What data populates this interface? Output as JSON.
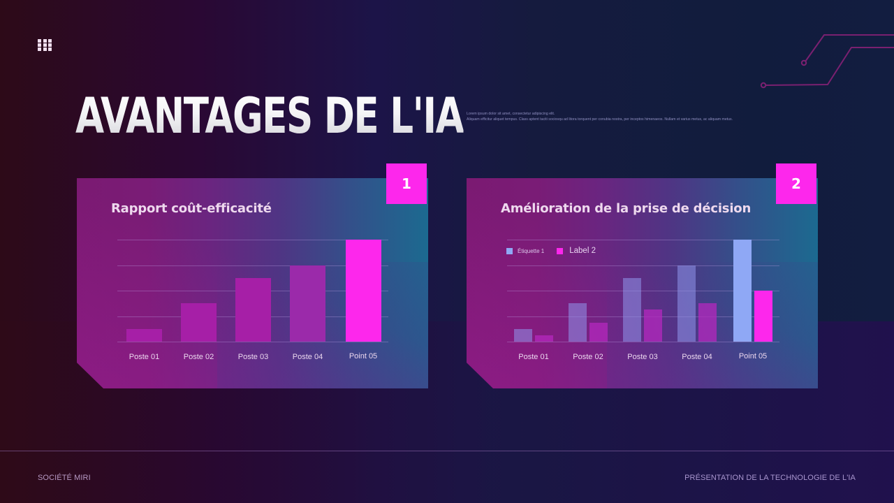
{
  "slide": {
    "title": "AVANTAGES DE L'IA",
    "intro_line_1": "Lorem ipsum dolor sit amet, consectetur adipiscing elit.",
    "intro_line_2": "Aliquam efficitur aliquet tempus. Class aptent taciti sociosqu ad litora torquent per conubia nostra, per inceptos himenaeos. Nullam et varius metus, ac aliquam metus.",
    "menu_icon": "grid-icon"
  },
  "cards": [
    {
      "badge": "1",
      "title": "Rapport coût-efficacité"
    },
    {
      "badge": "2",
      "title": "Amélioration de la prise de décision",
      "legend": [
        {
          "label": "Étiquette 1",
          "color": "#8fa8f5"
        },
        {
          "label": "Label 2",
          "color": "#fd27ec"
        }
      ]
    }
  ],
  "footer": {
    "left": "SOCIÉTÉ MIRI",
    "right": "PRÉSENTATION DE LA TECHNOLOGIE DE L'IA"
  },
  "colors": {
    "accent": "#fd27ec",
    "series_1": "#8fa8f5",
    "bar_muted": "#a724a8"
  },
  "chart_data": [
    {
      "type": "bar",
      "title": "Rapport coût-efficacité",
      "categories": [
        "Poste 01",
        "Poste 02",
        "Poste 03",
        "Poste 04",
        "Point 05"
      ],
      "values": [
        0.5,
        1.5,
        2.5,
        3.0,
        4.0
      ],
      "highlight_index": 4,
      "xlabel": "",
      "ylabel": "",
      "ylim": [
        0,
        4
      ],
      "grid": true,
      "gridline_count": 5,
      "legend": null
    },
    {
      "type": "bar",
      "title": "Amélioration de la prise de décision",
      "categories": [
        "Poste 01",
        "Poste 02",
        "Poste 03",
        "Poste 04",
        "Point 05"
      ],
      "series": [
        {
          "name": "Étiquette 1",
          "values": [
            0.5,
            1.5,
            2.5,
            3.0,
            4.0
          ]
        },
        {
          "name": "Label 2",
          "values": [
            0.25,
            0.75,
            1.25,
            1.5,
            2.0
          ]
        }
      ],
      "highlight_index": 4,
      "xlabel": "",
      "ylabel": "",
      "ylim": [
        0,
        4
      ],
      "grid": true,
      "gridline_count": 5,
      "legend_position": "top-left"
    }
  ]
}
